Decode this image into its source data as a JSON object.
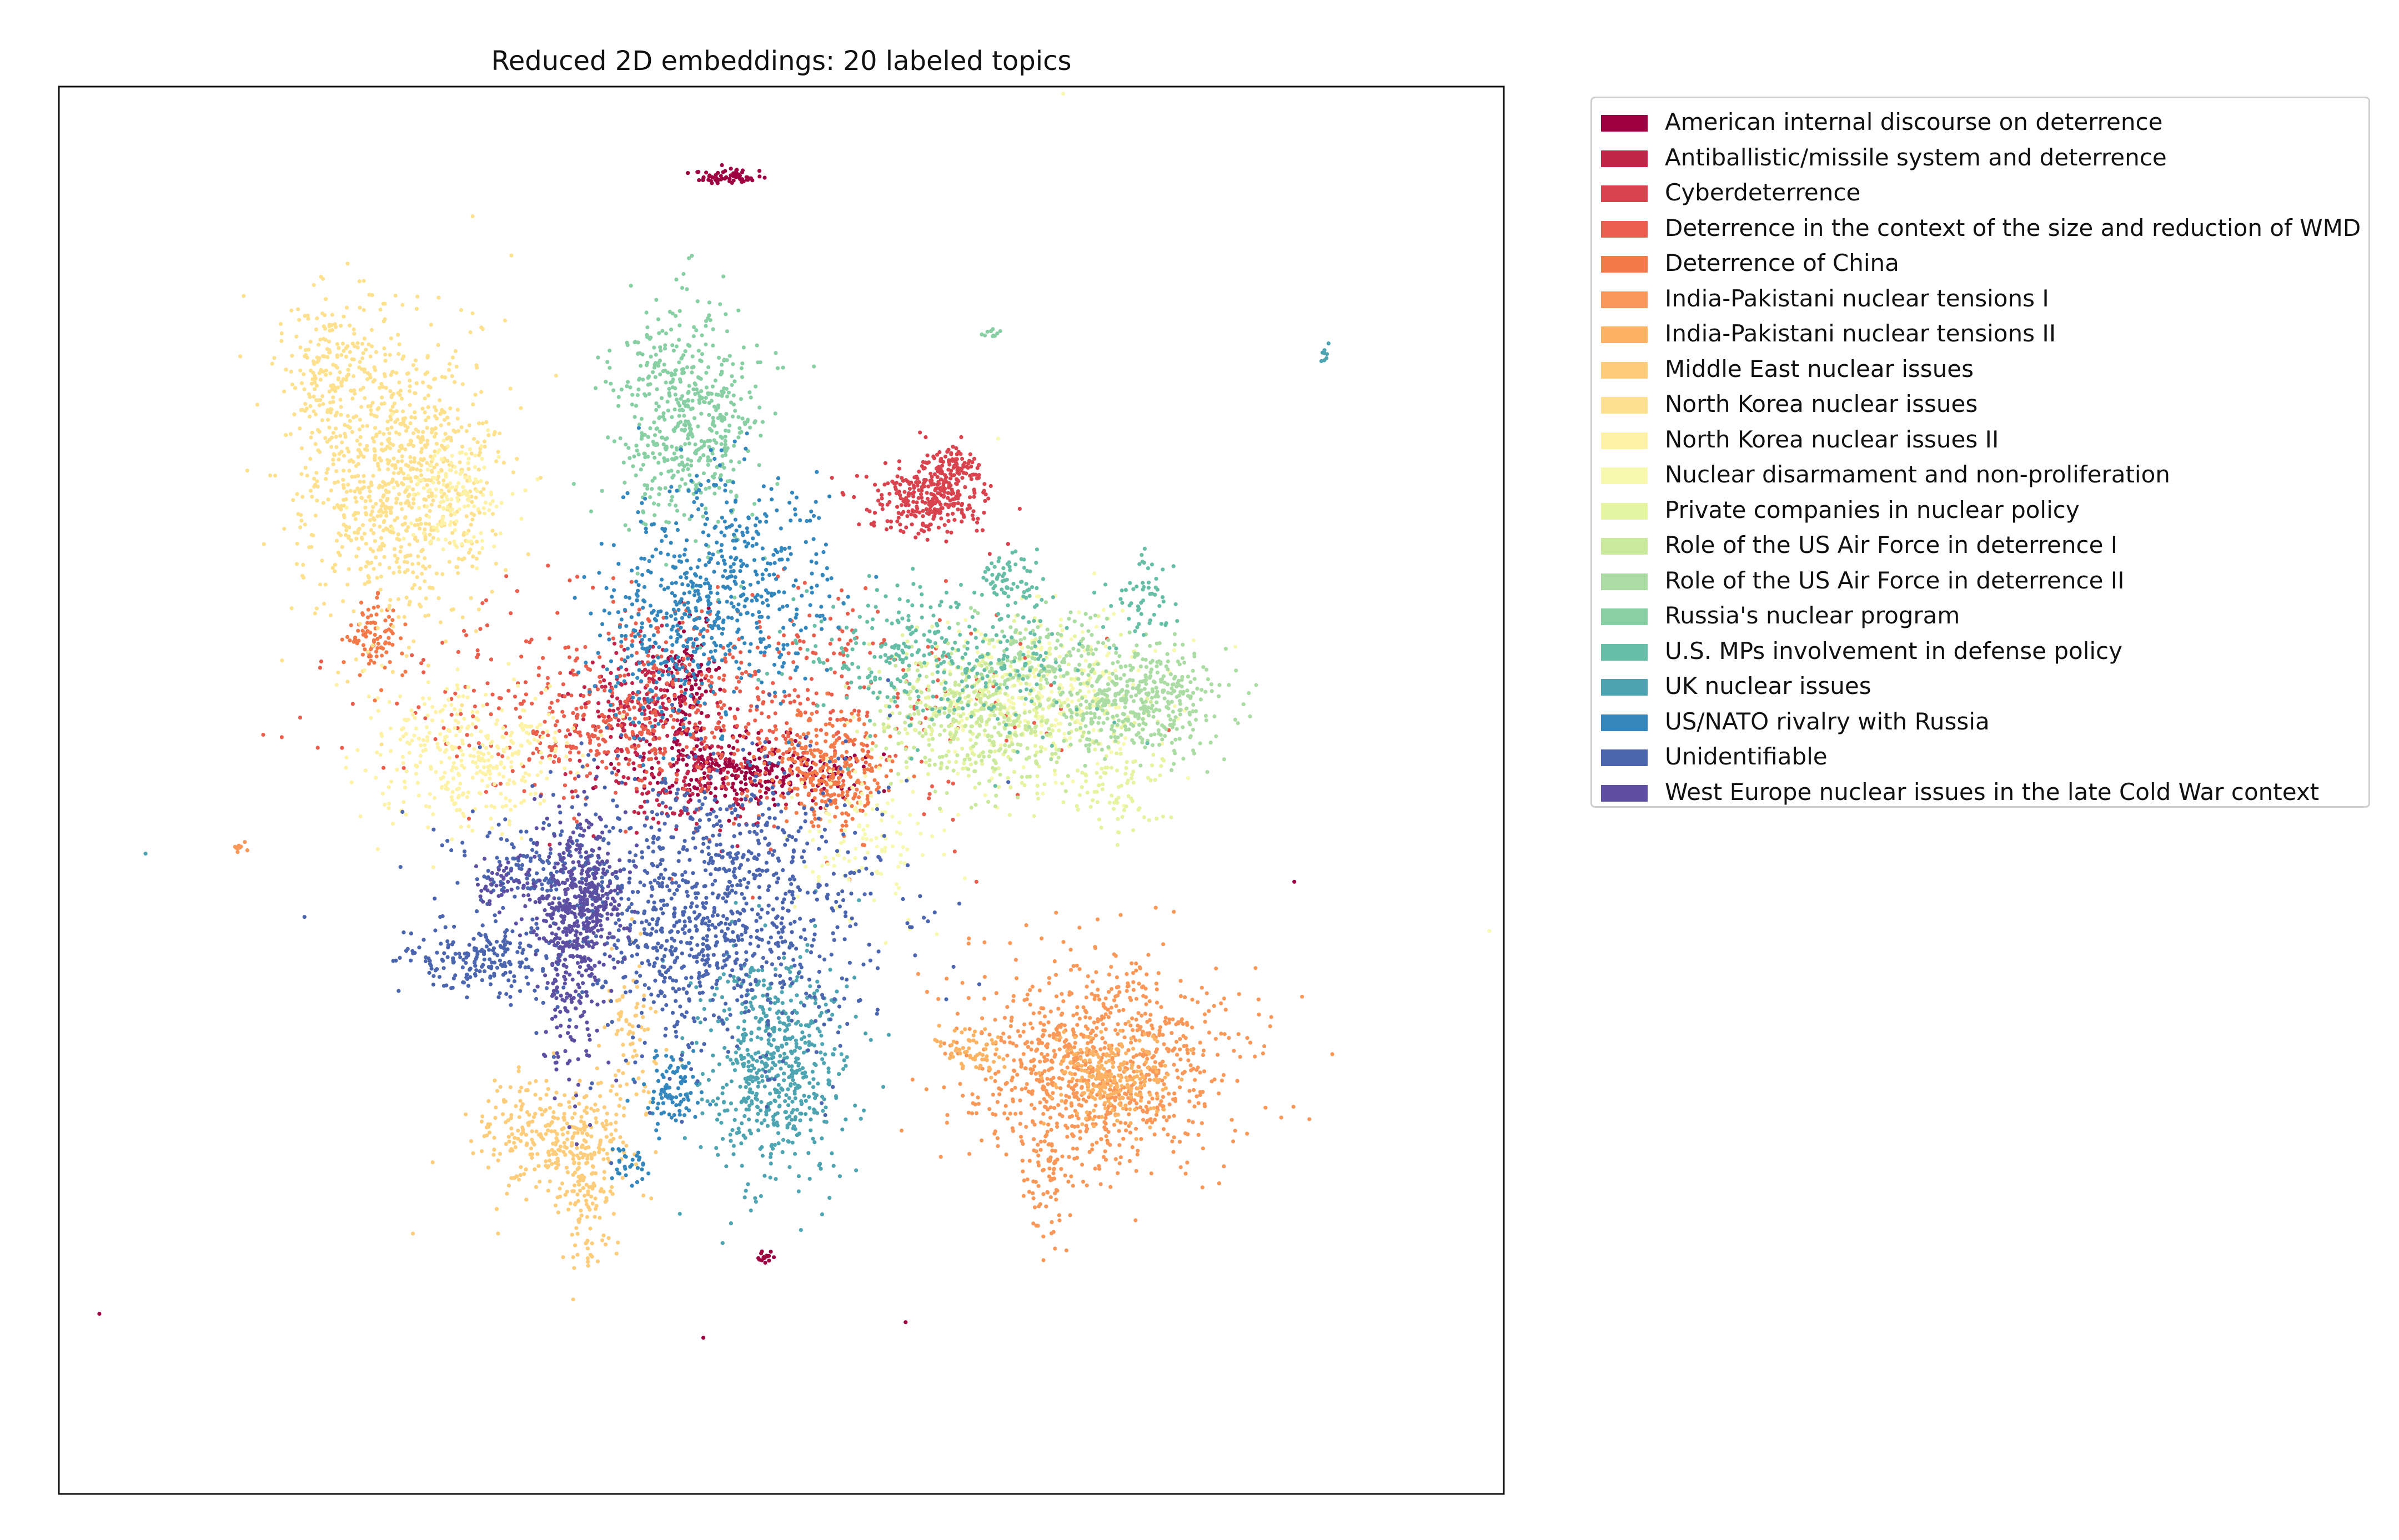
{
  "chart_data": {
    "type": "scatter",
    "title": "Reduced 2D embeddings: 20 labeled topics",
    "xlabel": "",
    "ylabel": "",
    "xlim": [
      0,
      100
    ],
    "ylim": [
      0,
      100
    ],
    "grid": false,
    "axis_ticks": false,
    "legend_position": "outside-right-top",
    "series": [
      {
        "name": "American internal discourse on deterrence",
        "color": "#9e0142",
        "clusters": [
          [
            46.5,
            93.6,
            1.2,
            0.3,
            70
          ],
          [
            47.5,
            51.4,
            3.5,
            1.3,
            300
          ],
          [
            43.5,
            57.5,
            1.0,
            2.0,
            120
          ],
          [
            48.9,
            16.9,
            0.3,
            0.2,
            15
          ]
        ],
        "points": [
          [
            2.8,
            12.8
          ],
          [
            44.6,
            11.1
          ],
          [
            58.6,
            12.2
          ],
          [
            85.5,
            43.5
          ]
        ]
      },
      {
        "name": "Antiballistic/missile system and deterrence",
        "color": "#c1264a",
        "clusters": [
          [
            40.0,
            56.5,
            2.0,
            2.0,
            160
          ],
          [
            43.0,
            51.5,
            3.0,
            2.5,
            170
          ]
        ],
        "points": []
      },
      {
        "name": "Cyberdeterrence",
        "color": "#d8434e",
        "clusters": [
          [
            60.0,
            70.8,
            2.0,
            1.3,
            300
          ],
          [
            62.0,
            73.0,
            1.0,
            0.8,
            80
          ]
        ],
        "points": [
          [
            53.5,
            72.2
          ],
          [
            66.5,
            70.0
          ]
        ]
      },
      {
        "name": "Deterrence in the context of the size and reduction of WMD",
        "color": "#e95e4c",
        "clusters": [
          [
            45.0,
            56.0,
            10.0,
            4.0,
            650
          ],
          [
            36.0,
            54.0,
            3.0,
            2.0,
            120
          ]
        ],
        "points": [
          [
            63.5,
            43.5
          ]
        ]
      },
      {
        "name": "Deterrence of China",
        "color": "#f47a4a",
        "clusters": [
          [
            53.5,
            51.5,
            2.0,
            2.0,
            300
          ],
          [
            21.8,
            61.0,
            1.0,
            1.3,
            90
          ]
        ],
        "points": []
      },
      {
        "name": "India-Pakistani nuclear tensions I",
        "color": "#f99858",
        "clusters": [
          [
            72.0,
            30.5,
            4.5,
            3.5,
            950
          ],
          [
            68.5,
            22.5,
            0.8,
            2.5,
            80
          ],
          [
            12.5,
            45.9,
            0.3,
            0.2,
            12
          ]
        ],
        "points": []
      },
      {
        "name": "India-Pakistani nuclear tensions II",
        "color": "#fcb464",
        "clusters": [
          [
            73.0,
            29.5,
            2.0,
            1.5,
            220
          ],
          [
            63.5,
            31.5,
            1.5,
            1.0,
            60
          ]
        ],
        "points": []
      },
      {
        "name": "Middle East nuclear issues",
        "color": "#fdcd7c",
        "clusters": [
          [
            34.5,
            25.5,
            3.0,
            2.0,
            300
          ],
          [
            36.5,
            21.0,
            1.0,
            2.5,
            120
          ],
          [
            39.5,
            33.0,
            1.0,
            3.0,
            70
          ]
        ],
        "points": [
          [
            24.5,
            18.5
          ]
        ]
      },
      {
        "name": "North Korea nuclear issues",
        "color": "#fee18f",
        "clusters": [
          [
            23.5,
            72.5,
            3.5,
            5.5,
            900
          ],
          [
            18.5,
            80.0,
            1.5,
            2.5,
            150
          ]
        ],
        "points": []
      },
      {
        "name": "North Korea nuclear issues II",
        "color": "#fef2a7",
        "clusters": [
          [
            28.5,
            52.5,
            3.5,
            2.5,
            350
          ],
          [
            27.5,
            70.5,
            2.0,
            2.0,
            150
          ]
        ],
        "points": []
      },
      {
        "name": "Nuclear disarmament and non-proliferation",
        "color": "#f6f9af",
        "clusters": [
          [
            68.5,
            57.0,
            4.0,
            3.0,
            260
          ],
          [
            56.0,
            46.5,
            2.5,
            3.0,
            120
          ]
        ],
        "points": [
          [
            69.5,
            99.5
          ],
          [
            99.0,
            40.0
          ],
          [
            65.0,
            75.0
          ]
        ]
      },
      {
        "name": "Private companies in nuclear policy",
        "color": "#e5f4a0",
        "clusters": [
          [
            65.5,
            56.0,
            4.5,
            3.0,
            300
          ],
          [
            73.0,
            50.0,
            2.0,
            2.0,
            80
          ]
        ],
        "points": []
      },
      {
        "name": "Role of the US Air Force in deterrence I",
        "color": "#cbe99c",
        "clusters": [
          [
            64.0,
            55.0,
            3.5,
            2.5,
            350
          ]
        ],
        "points": []
      },
      {
        "name": "Role of the US Air Force in deterrence II",
        "color": "#abdca4",
        "clusters": [
          [
            74.5,
            56.5,
            3.0,
            2.0,
            420
          ],
          [
            68.0,
            60.0,
            2.5,
            1.5,
            120
          ]
        ],
        "points": []
      },
      {
        "name": "Russia's nuclear program",
        "color": "#88cfa4",
        "clusters": [
          [
            43.5,
            76.5,
            2.5,
            4.0,
            550
          ],
          [
            64.5,
            82.5,
            0.3,
            0.2,
            10
          ]
        ],
        "points": []
      },
      {
        "name": "U.S. MPs involvement in defense policy",
        "color": "#67bea6",
        "clusters": [
          [
            61.0,
            59.5,
            5.0,
            2.5,
            350
          ],
          [
            66.0,
            65.0,
            1.0,
            1.0,
            60
          ],
          [
            75.0,
            63.5,
            1.0,
            1.5,
            50
          ]
        ],
        "points": []
      },
      {
        "name": "UK nuclear issues",
        "color": "#4ea5b1",
        "clusters": [
          [
            49.5,
            30.5,
            2.5,
            4.0,
            600
          ],
          [
            87.5,
            81.0,
            0.2,
            0.3,
            8
          ]
        ],
        "points": [
          [
            6.0,
            45.5
          ]
        ]
      },
      {
        "name": "US/NATO rivalry with Russia",
        "color": "#3487bc",
        "clusters": [
          [
            46.5,
            64.5,
            3.5,
            4.0,
            500
          ],
          [
            41.0,
            60.0,
            2.0,
            3.0,
            150
          ],
          [
            42.5,
            28.5,
            1.0,
            1.5,
            90
          ],
          [
            39.5,
            23.5,
            0.6,
            1.0,
            30
          ]
        ],
        "points": []
      },
      {
        "name": "Unidentifiable",
        "color": "#4b65ae",
        "clusters": [
          [
            45.0,
            41.5,
            6.0,
            5.0,
            1100
          ],
          [
            29.0,
            38.0,
            2.5,
            1.2,
            180
          ],
          [
            33.5,
            44.5,
            3.0,
            2.0,
            150
          ]
        ],
        "points": [
          [
            17.0,
            41.0
          ]
        ]
      },
      {
        "name": "West Europe nuclear issues in the late Cold War context",
        "color": "#5e4fa2",
        "clusters": [
          [
            36.0,
            42.0,
            1.5,
            3.0,
            420
          ],
          [
            35.5,
            34.5,
            1.0,
            3.5,
            120
          ],
          [
            31.5,
            43.5,
            1.5,
            1.0,
            60
          ]
        ],
        "points": []
      }
    ]
  }
}
